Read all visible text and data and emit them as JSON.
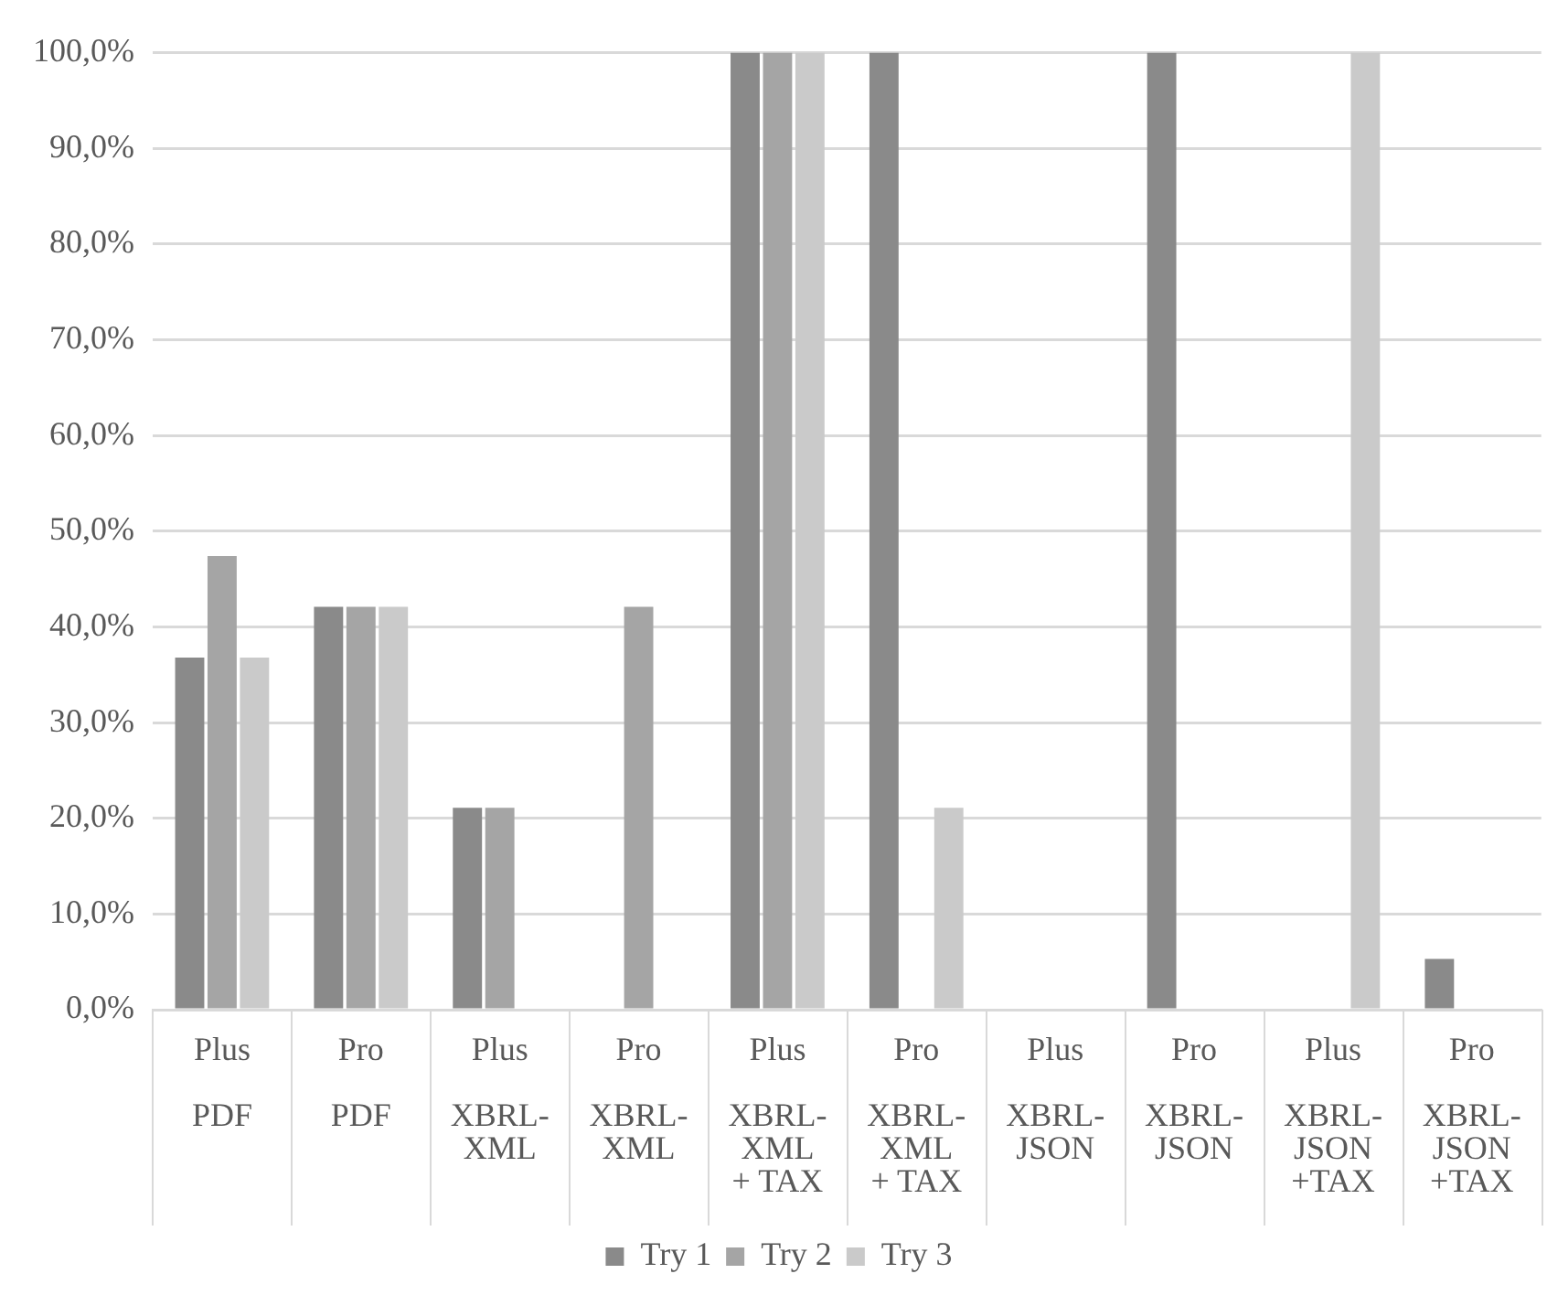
{
  "chart_data": {
    "type": "bar",
    "categories": [
      "Plus\nPDF",
      "Pro\nPDF",
      "Plus\nXBRL-XML",
      "Pro\nXBRL-XML",
      "Plus\nXBRL-XML + TAX",
      "Pro\nXBRL-XML + TAX",
      "Plus\nXBRL-JSON",
      "Pro\nXBRL-JSON",
      "Plus\nXBRL-JSON +TAX",
      "Pro\nXBRL-JSON +TAX"
    ],
    "series": [
      {
        "name": "Try 1",
        "color": "#8a8a8a",
        "values": [
          36.8,
          42.1,
          21.1,
          0,
          100,
          100,
          0,
          100,
          0,
          5.3
        ]
      },
      {
        "name": "Try 2",
        "color": "#a5a5a5",
        "values": [
          47.4,
          42.1,
          21.1,
          42.1,
          100,
          0,
          0,
          0,
          0,
          0
        ]
      },
      {
        "name": "Try 3",
        "color": "#cacaca",
        "values": [
          36.8,
          42.1,
          0,
          0,
          100,
          21.1,
          0,
          0,
          100,
          0
        ]
      }
    ],
    "ylim": [
      0,
      100
    ],
    "yticks": [
      {
        "value": 0,
        "label": "0,0%"
      },
      {
        "value": 10,
        "label": "10,0%"
      },
      {
        "value": 20,
        "label": "20,0%"
      },
      {
        "value": 30,
        "label": "30,0%"
      },
      {
        "value": 40,
        "label": "40,0%"
      },
      {
        "value": 50,
        "label": "50,0%"
      },
      {
        "value": 60,
        "label": "60,0%"
      },
      {
        "value": 70,
        "label": "70,0%"
      },
      {
        "value": 80,
        "label": "80,0%"
      },
      {
        "value": 90,
        "label": "90,0%"
      },
      {
        "value": 100,
        "label": "100,0%"
      }
    ],
    "grid": "y",
    "legend": "bottom"
  }
}
